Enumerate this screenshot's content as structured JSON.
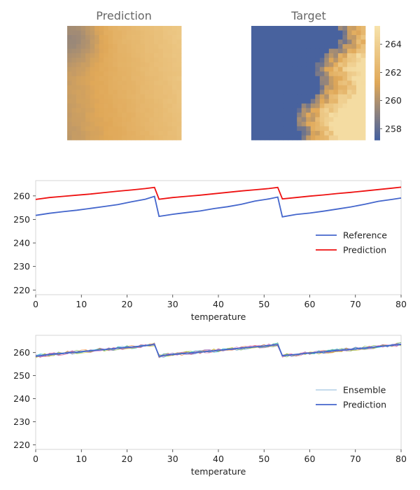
{
  "heatmaps": [
    {
      "title": "Prediction"
    },
    {
      "title": "Target"
    }
  ],
  "colorbar": {
    "range": [
      257.2,
      265.3
    ],
    "ticks": [
      "258",
      "260",
      "262",
      "264"
    ],
    "colors": [
      "#4460a0",
      "#e0a858",
      "#f7e3ac"
    ]
  },
  "chart_data": [
    {
      "type": "heatmap",
      "title": "Prediction",
      "grid_size": 25,
      "value_range": [
        259.5,
        264.5
      ],
      "description_values": "warm field, mostly 260-264"
    },
    {
      "type": "heatmap",
      "title": "Target",
      "grid_size": 25,
      "value_range": [
        257.2,
        264.8
      ]
    },
    {
      "type": "line",
      "xlabel": "temperature",
      "xlim": [
        0,
        80
      ],
      "ylim": [
        218,
        266.5
      ],
      "xticks": [
        "0",
        "10",
        "20",
        "30",
        "40",
        "50",
        "60",
        "70",
        "80"
      ],
      "yticks": [
        "220",
        "230",
        "240",
        "250",
        "260"
      ],
      "legend": "right",
      "series": [
        {
          "name": "Reference",
          "color": "#4466cc",
          "x": [
            0,
            3,
            6,
            9,
            12,
            15,
            18,
            21,
            24,
            26,
            27,
            30,
            33,
            36,
            39,
            42,
            45,
            48,
            51,
            53,
            54,
            57,
            60,
            63,
            66,
            69,
            72,
            75,
            78,
            80
          ],
          "y": [
            251.7,
            252.6,
            253.3,
            253.9,
            254.7,
            255.5,
            256.3,
            257.5,
            258.6,
            259.8,
            251.3,
            252.2,
            252.9,
            253.6,
            254.6,
            255.4,
            256.4,
            257.8,
            258.7,
            259.5,
            251.1,
            252.1,
            252.7,
            253.5,
            254.4,
            255.3,
            256.4,
            257.7,
            258.5,
            259.1
          ]
        },
        {
          "name": "Prediction",
          "color": "#ee1111",
          "x": [
            0,
            3,
            6,
            9,
            12,
            15,
            18,
            21,
            24,
            26,
            27,
            30,
            33,
            36,
            39,
            42,
            45,
            48,
            51,
            53,
            54,
            57,
            60,
            63,
            66,
            69,
            72,
            75,
            78,
            80
          ],
          "y": [
            258.5,
            259.3,
            259.8,
            260.3,
            260.8,
            261.4,
            262.0,
            262.5,
            263.1,
            263.6,
            258.6,
            259.3,
            259.8,
            260.3,
            260.9,
            261.5,
            262.1,
            262.6,
            263.1,
            263.6,
            258.7,
            259.3,
            259.9,
            260.4,
            261.0,
            261.5,
            262.1,
            262.7,
            263.3,
            263.7
          ]
        }
      ]
    },
    {
      "type": "line",
      "xlabel": "temperature",
      "xlim": [
        0,
        80
      ],
      "ylim": [
        218,
        267.5
      ],
      "xticks": [
        "0",
        "10",
        "20",
        "30",
        "40",
        "50",
        "60",
        "70",
        "80"
      ],
      "yticks": [
        "220",
        "230",
        "240",
        "250",
        "260"
      ],
      "legend": "right",
      "ensemble_members": 8,
      "ensemble_colors": [
        "#5b9bd5",
        "#ed7d31",
        "#70ad47",
        "#d45087",
        "#9467bd",
        "#17becf",
        "#bcbd22",
        "#e377c2"
      ],
      "series": [
        {
          "name": "Ensemble",
          "color": "#8ab4d8"
        },
        {
          "name": "Prediction",
          "color": "#4466cc",
          "x": [
            0,
            3,
            6,
            9,
            12,
            15,
            18,
            21,
            24,
            26,
            27,
            30,
            33,
            36,
            39,
            42,
            45,
            48,
            51,
            53,
            54,
            57,
            60,
            63,
            66,
            69,
            72,
            75,
            78,
            80
          ],
          "y": [
            258.4,
            259.2,
            259.7,
            260.2,
            260.8,
            261.3,
            261.9,
            262.4,
            263.0,
            263.5,
            258.5,
            259.2,
            259.7,
            260.2,
            260.8,
            261.4,
            261.9,
            262.5,
            263.0,
            263.5,
            258.6,
            259.2,
            259.8,
            260.3,
            260.9,
            261.4,
            262.0,
            262.6,
            263.2,
            263.6
          ]
        }
      ]
    }
  ]
}
